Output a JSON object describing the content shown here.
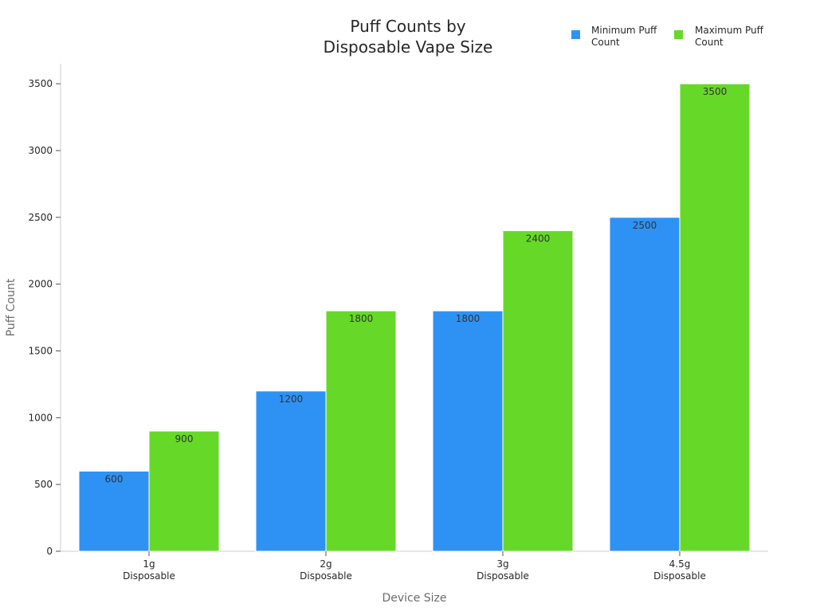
{
  "chart_data": {
    "type": "bar",
    "title_lines": [
      "Puff Counts by",
      "Disposable Vape Size"
    ],
    "xlabel": "Device Size",
    "ylabel": "Puff Count",
    "categories": [
      [
        "1g",
        "Disposable"
      ],
      [
        "2g",
        "Disposable"
      ],
      [
        "3g",
        "Disposable"
      ],
      [
        "4.5g",
        "Disposable"
      ]
    ],
    "series": [
      {
        "name_lines": [
          "Minimum Puff",
          "Count"
        ],
        "color": "#2e92f5",
        "values": [
          600,
          1200,
          1800,
          2500
        ]
      },
      {
        "name_lines": [
          "Maximum Puff",
          "Count"
        ],
        "color": "#66d928",
        "values": [
          900,
          1800,
          2400,
          3500
        ]
      }
    ],
    "ylim": [
      0,
      3650
    ],
    "yticks": [
      0,
      500,
      1000,
      1500,
      2000,
      2500,
      3000,
      3500
    ],
    "grid": false,
    "legend_position": "top-right",
    "data_labels": true
  }
}
